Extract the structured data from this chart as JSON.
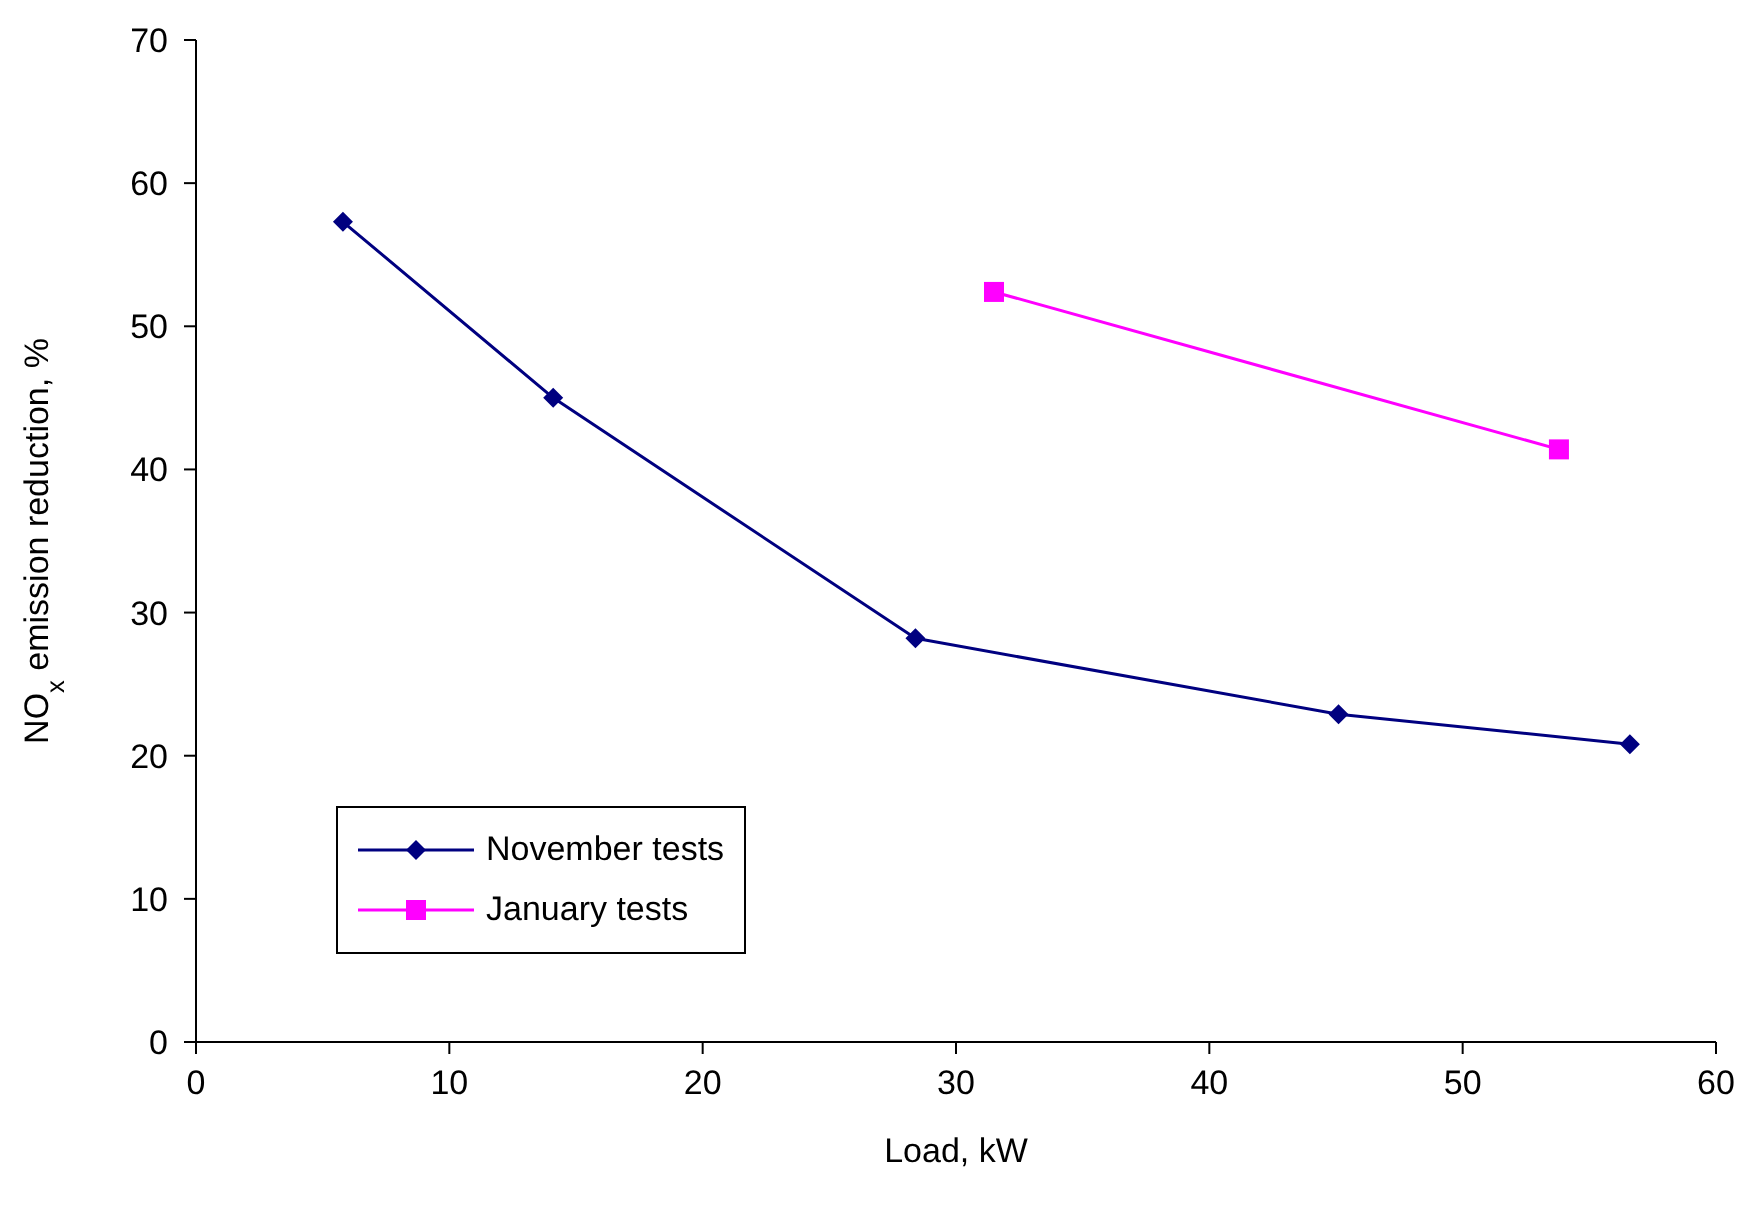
{
  "chart_data": {
    "type": "line",
    "xlabel": "Load, kW",
    "ylabel": "NO$_{x}$ emission reduction, %",
    "series": [
      {
        "name": "November tests",
        "color": "#000080",
        "marker": "diamond",
        "x": [
          5.8,
          14.1,
          28.4,
          45.1,
          56.6
        ],
        "values": [
          57.3,
          45.0,
          28.2,
          22.9,
          20.8
        ]
      },
      {
        "name": "January tests",
        "color": "#ff00ff",
        "marker": "square",
        "x": [
          31.5,
          53.8
        ],
        "values": [
          52.4,
          41.4
        ]
      }
    ],
    "xlim": [
      0,
      60
    ],
    "xticks": [
      0,
      10,
      20,
      30,
      40,
      50,
      60
    ],
    "ylim": [
      0,
      70
    ],
    "yticks": [
      0,
      10,
      20,
      30,
      40,
      50,
      60,
      70
    ],
    "grid": false,
    "legend": "bottom left"
  }
}
